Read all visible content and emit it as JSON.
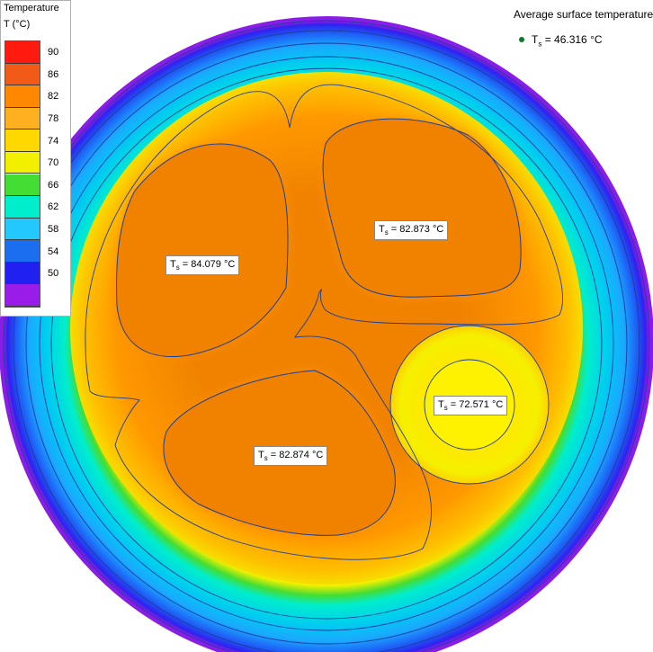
{
  "legend": {
    "title": "Temperature",
    "unit": "T (°C)",
    "ticks": [
      "90",
      "86",
      "82",
      "78",
      "74",
      "70",
      "66",
      "62",
      "58",
      "54",
      "50"
    ],
    "band_colors": [
      "#ff1a10",
      "#f25a18",
      "#ff8800",
      "#ffb020",
      "#ffd800",
      "#f2f000",
      "#44dd33",
      "#00eecc",
      "#22c8ff",
      "#1b6ef0",
      "#2020f0",
      "#9a1ce8"
    ]
  },
  "average": {
    "title": "Average surface temperature",
    "symbol": "T",
    "subscript": "s",
    "value": "= 46.316 °C",
    "marker_color": "#0a7a2a"
  },
  "labels": [
    {
      "symbol": "T",
      "sub": "s",
      "value": "= 84.079 °C"
    },
    {
      "symbol": "T",
      "sub": "s",
      "value": "= 82.873 °C"
    },
    {
      "symbol": "T",
      "sub": "s",
      "value": "= 82.874 °C"
    },
    {
      "symbol": "T",
      "sub": "s",
      "value": "= 72.571 °C"
    }
  ],
  "colors": {
    "outer_jacket": "#8a1ce8",
    "hot": "#f08200",
    "warm": "#ff9f00",
    "contour": "#1a3f9a"
  }
}
